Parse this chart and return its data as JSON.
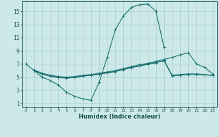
{
  "xlabel": "Humidex (Indice chaleur)",
  "bg_color": "#cce8e8",
  "grid_color": "#aacccc",
  "line_color": "#1a7070",
  "xlim": [
    -0.5,
    23.5
  ],
  "ylim": [
    0.5,
    16.5
  ],
  "xticks": [
    0,
    1,
    2,
    3,
    4,
    5,
    6,
    7,
    8,
    9,
    10,
    11,
    12,
    13,
    14,
    15,
    16,
    17,
    18,
    19,
    20,
    21,
    22,
    23
  ],
  "yticks": [
    1,
    3,
    5,
    7,
    9,
    11,
    13,
    15
  ],
  "series": [
    {
      "x": [
        0,
        1,
        2,
        3,
        4,
        5,
        6,
        7,
        8,
        9,
        10,
        11,
        12,
        13,
        14,
        15,
        16,
        17
      ],
      "y": [
        7.0,
        6.0,
        5.0,
        4.5,
        3.8,
        2.7,
        2.1,
        1.7,
        1.5,
        4.2,
        8.0,
        12.2,
        14.3,
        15.6,
        16.0,
        16.1,
        15.0,
        9.5
      ]
    },
    {
      "x": [
        1,
        2,
        3,
        4,
        5,
        6,
        7,
        8,
        9,
        10,
        11,
        12,
        13,
        14,
        15,
        16,
        17,
        18,
        19,
        20,
        21,
        22,
        23
      ],
      "y": [
        6.1,
        5.6,
        5.3,
        5.1,
        5.0,
        5.1,
        5.3,
        5.4,
        5.6,
        5.8,
        6.0,
        6.3,
        6.6,
        6.9,
        7.1,
        7.4,
        7.7,
        8.0,
        8.4,
        8.7,
        7.0,
        6.5,
        5.5
      ]
    },
    {
      "x": [
        1,
        2,
        3,
        4,
        5,
        6,
        7,
        8,
        9,
        10,
        11,
        12,
        13,
        14,
        15,
        16,
        17,
        18,
        19,
        20,
        21,
        22,
        23
      ],
      "y": [
        6.05,
        5.5,
        5.2,
        5.0,
        4.9,
        5.0,
        5.2,
        5.35,
        5.5,
        5.7,
        5.9,
        6.2,
        6.5,
        6.75,
        7.0,
        7.25,
        7.55,
        5.3,
        5.4,
        5.5,
        5.5,
        5.4,
        5.3
      ]
    },
    {
      "x": [
        1,
        2,
        3,
        4,
        5,
        6,
        7,
        8,
        9,
        10,
        11,
        12,
        13,
        14,
        15,
        16,
        17,
        18,
        19,
        20,
        21,
        22,
        23
      ],
      "y": [
        6.0,
        5.45,
        5.15,
        4.95,
        4.85,
        4.95,
        5.15,
        5.3,
        5.45,
        5.65,
        5.85,
        6.15,
        6.45,
        6.7,
        6.95,
        7.2,
        7.5,
        5.2,
        5.3,
        5.4,
        5.4,
        5.35,
        5.25
      ]
    }
  ]
}
